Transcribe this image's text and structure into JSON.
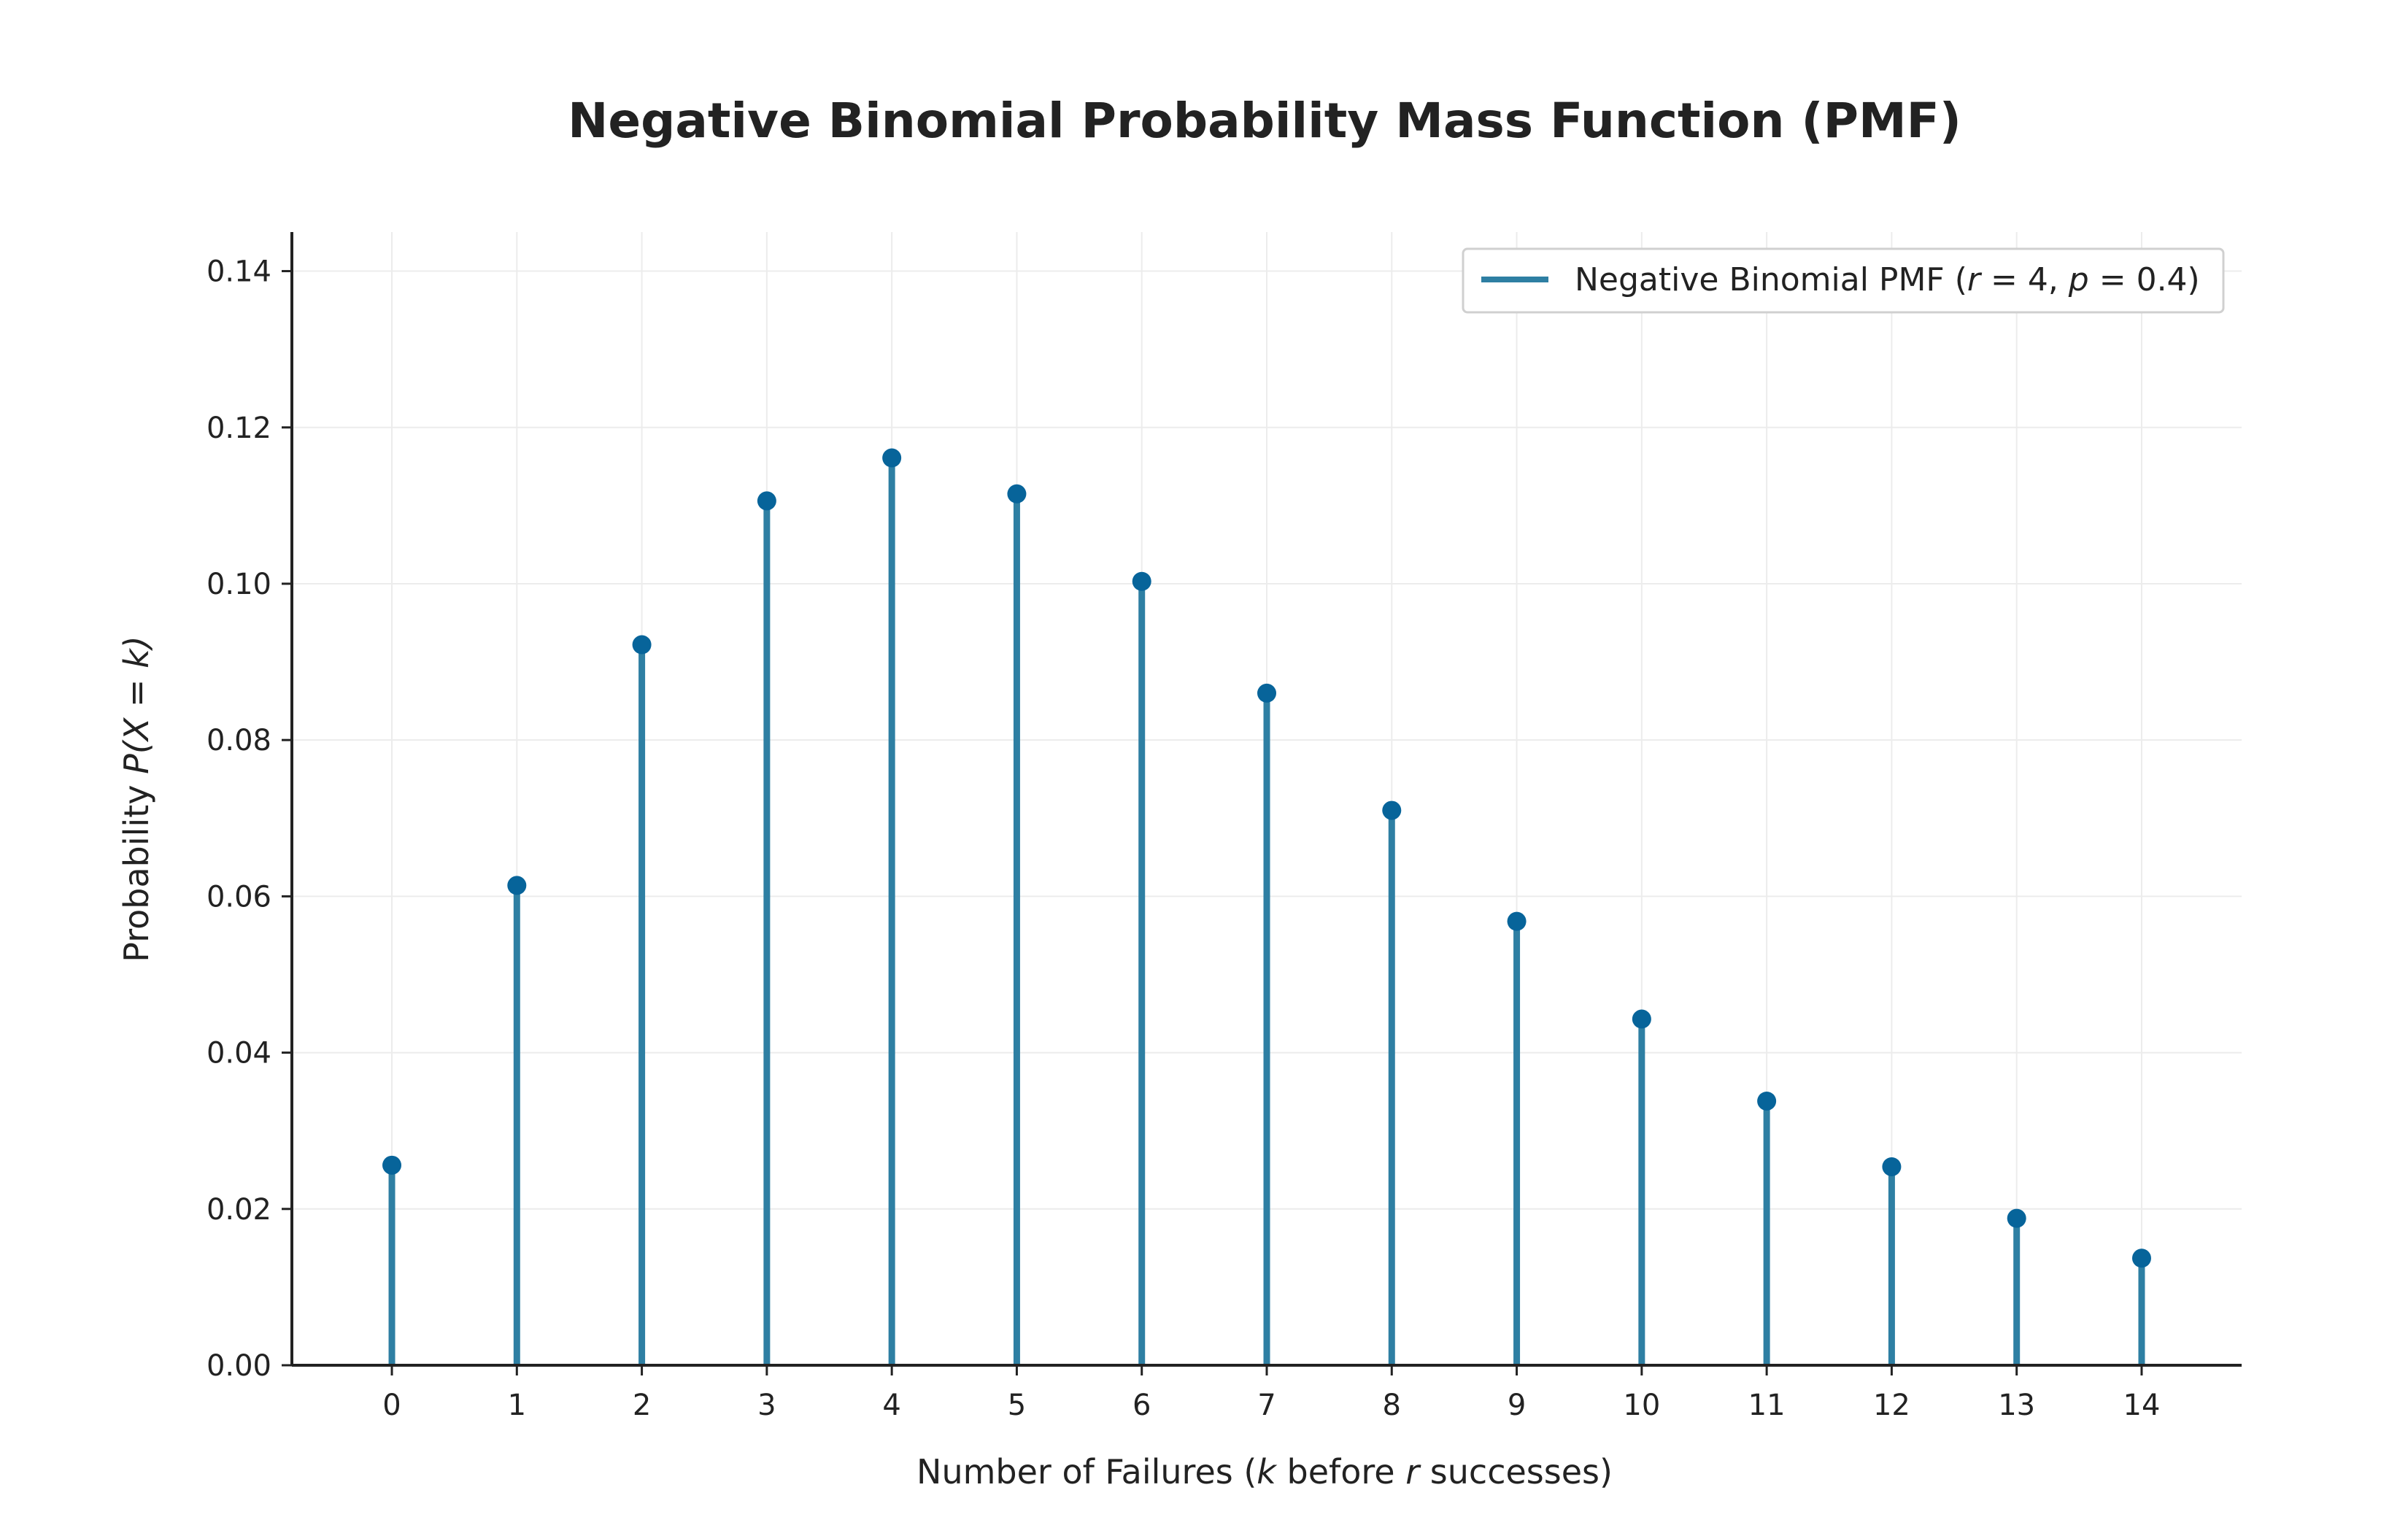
{
  "chart_data": {
    "type": "stem",
    "title": "Negative Binomial Probability Mass Function (PMF)",
    "xlabel": {
      "pre": "Number of Failures (",
      "k": "k",
      "mid": " before ",
      "r": "r",
      "post": " successes)"
    },
    "ylabel": {
      "pre": "Probability ",
      "math": "P(X = k)"
    },
    "x": [
      0,
      1,
      2,
      3,
      4,
      5,
      6,
      7,
      8,
      9,
      10,
      11,
      12,
      13,
      14
    ],
    "x_tick_labels": [
      "0",
      "1",
      "2",
      "3",
      "4",
      "5",
      "6",
      "7",
      "8",
      "9",
      "10",
      "11",
      "12",
      "13",
      "14"
    ],
    "y_ticks": [
      0.0,
      0.02,
      0.04,
      0.06,
      0.08,
      0.1,
      0.12,
      0.14
    ],
    "y_tick_labels": [
      "0.00",
      "0.02",
      "0.04",
      "0.06",
      "0.08",
      "0.10",
      "0.12",
      "0.14"
    ],
    "xlim": [
      -0.8,
      14.8
    ],
    "ylim": [
      0,
      0.145
    ],
    "grid": true,
    "legend_position": "top-right",
    "series": [
      {
        "name": "Negative Binomial PMF (r = 4, p = 0.4)",
        "legend": {
          "pre": "Negative Binomial PMF (",
          "r": "r",
          "eq1": " = 4, ",
          "p": "p",
          "eq2": " = 0.4)"
        },
        "values": [
          0.0256,
          0.0614,
          0.0922,
          0.1106,
          0.1161,
          0.1115,
          0.1003,
          0.086,
          0.071,
          0.0568,
          0.0443,
          0.0338,
          0.0254,
          0.0188,
          0.0137
        ],
        "stem_color": "#2e7fa3",
        "marker_color": "#07649a"
      }
    ],
    "colors": {
      "axis": "#222222",
      "grid": "#ececec"
    }
  }
}
